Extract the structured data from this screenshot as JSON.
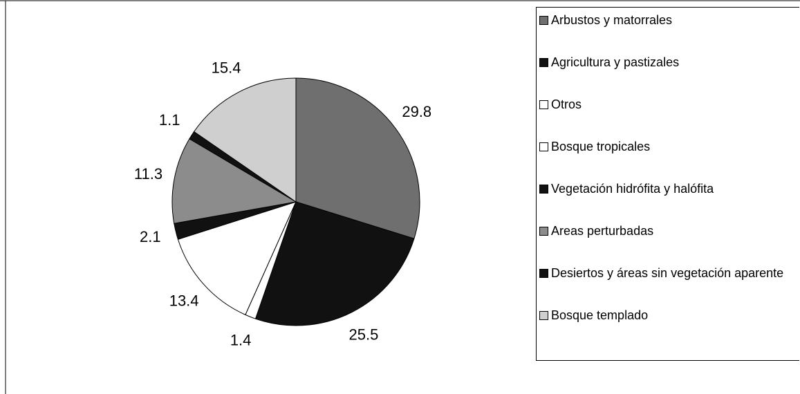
{
  "chart_data": {
    "type": "pie",
    "categories": [
      "Arbustos y matorrales",
      "Agricultura y pastizales",
      "Otros",
      "Bosque tropicales",
      "Vegetación hidrófita y halófita",
      "Areas perturbadas",
      "Desiertos y áreas sin vegetación aparente",
      "Bosque templado"
    ],
    "values": [
      29.8,
      25.5,
      1.4,
      13.4,
      2.1,
      11.3,
      1.1,
      15.4
    ],
    "colors": [
      "#6f6f6f",
      "#111111",
      "#ffffff",
      "#ffffff",
      "#111111",
      "#8c8c8c",
      "#111111",
      "#cfcfcf"
    ]
  }
}
